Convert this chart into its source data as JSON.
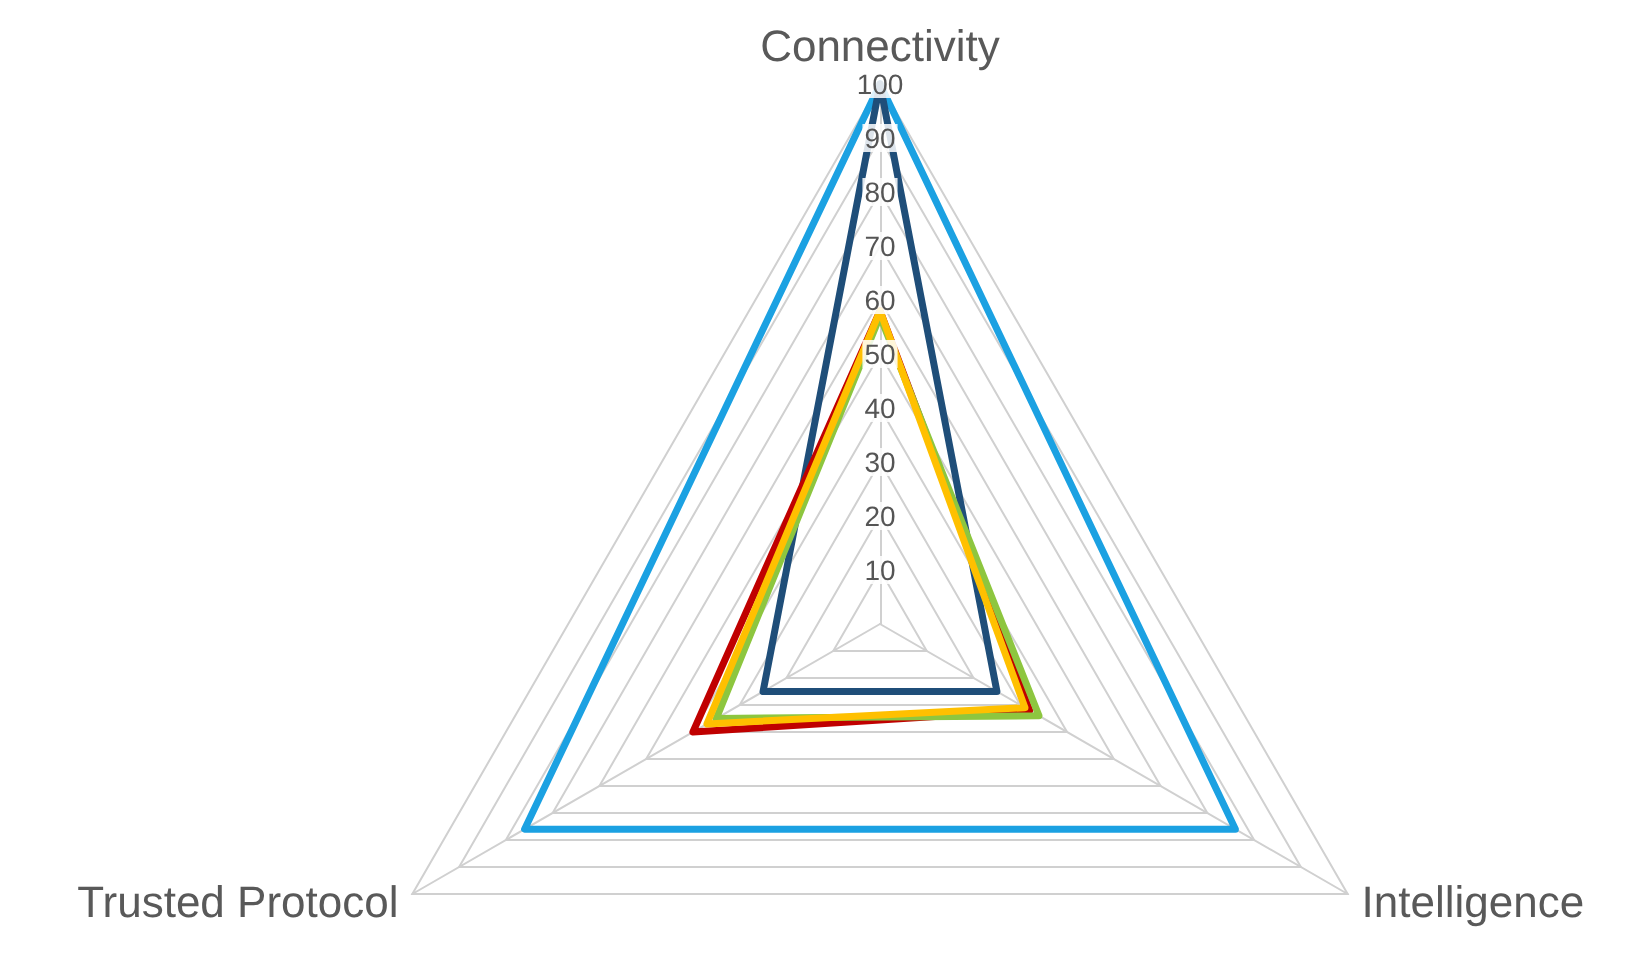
{
  "chart_data": {
    "type": "radar",
    "categories": [
      "Connectivity",
      "Intelligence",
      "Trusted Protocol"
    ],
    "ylim": [
      0,
      100
    ],
    "yticks": [
      10,
      20,
      30,
      40,
      50,
      60,
      70,
      80,
      90,
      100
    ],
    "marker": "none",
    "line_style": "solid",
    "grid": true,
    "series": [
      {
        "color": "#1ba1e2",
        "values": [
          100,
          76,
          76
        ]
      },
      {
        "color": "#1f4e79",
        "values": [
          100,
          25,
          25
        ]
      },
      {
        "color": "#c00000",
        "values": [
          58,
          32,
          40
        ]
      },
      {
        "color": "#8dc63f",
        "values": [
          57,
          34,
          35
        ]
      },
      {
        "color": "#ffc000",
        "values": [
          58,
          31,
          37
        ]
      }
    ]
  }
}
